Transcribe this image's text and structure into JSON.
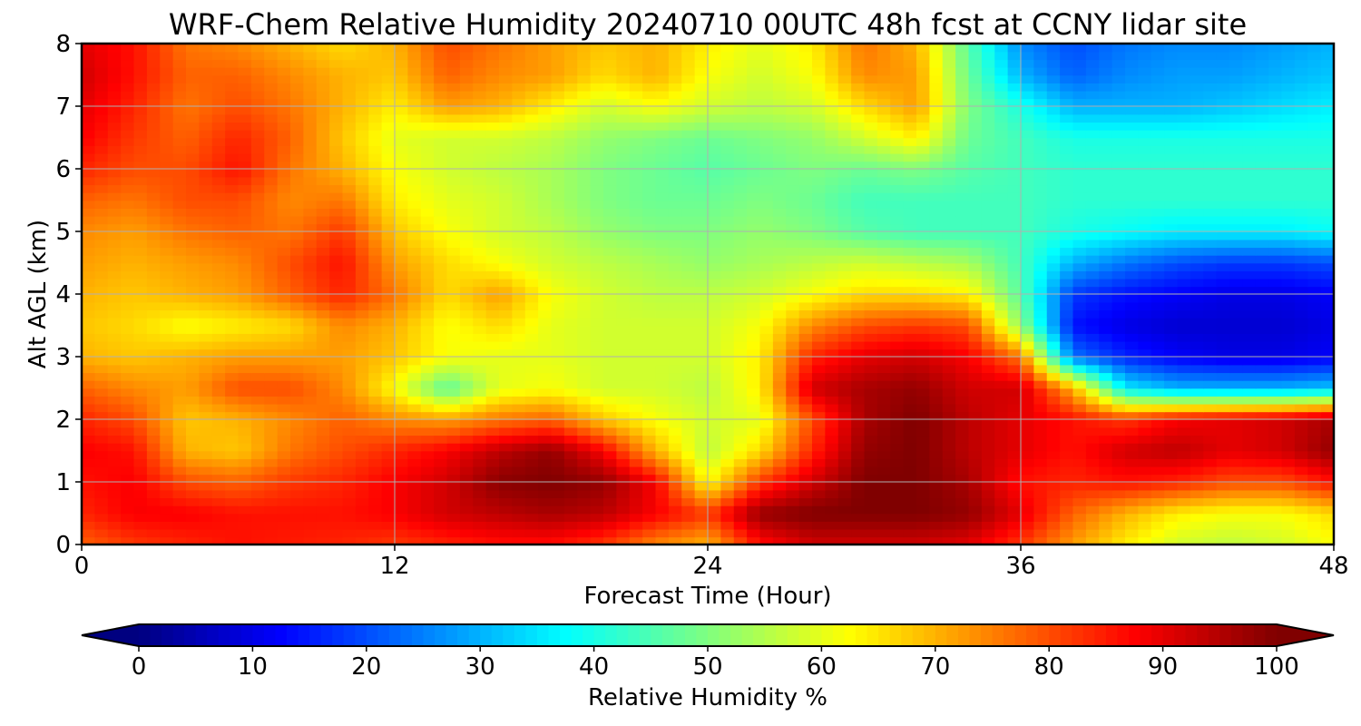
{
  "chart_data": {
    "type": "heatmap",
    "title": "WRF-Chem Relative Humidity 20240710 00UTC 48h fcst at CCNY lidar site",
    "xlabel": "Forecast Time (Hour)",
    "ylabel": "Alt AGL (km)",
    "xlim": [
      0,
      48
    ],
    "ylim": [
      0,
      8
    ],
    "x_ticks": [
      0,
      12,
      24,
      36,
      48
    ],
    "y_ticks": [
      0,
      1,
      2,
      3,
      4,
      5,
      6,
      7,
      8
    ],
    "grid": true,
    "colorbar": {
      "label": "Relative Humidity %",
      "range": [
        0,
        100
      ],
      "ticks": [
        0,
        10,
        20,
        30,
        40,
        50,
        60,
        70,
        80,
        90,
        100
      ],
      "extend": "both",
      "colormap": "jet",
      "placement": "bottom"
    },
    "x": [
      0,
      2,
      4,
      6,
      8,
      10,
      12,
      14,
      16,
      18,
      20,
      22,
      24,
      26,
      28,
      30,
      32,
      34,
      36,
      38,
      40,
      42,
      44,
      46,
      48
    ],
    "y": [
      0,
      0.5,
      1,
      1.5,
      2,
      2.5,
      3,
      3.5,
      4,
      4.5,
      5,
      5.5,
      6,
      6.5,
      7,
      7.5,
      8
    ],
    "z": [
      [
        78,
        82,
        84,
        86,
        85,
        84,
        82,
        84,
        86,
        86,
        82,
        74,
        70,
        86,
        92,
        92,
        92,
        90,
        82,
        72,
        64,
        58,
        56,
        58,
        62
      ],
      [
        84,
        88,
        88,
        86,
        86,
        86,
        88,
        92,
        94,
        96,
        94,
        88,
        82,
        98,
        100,
        100,
        100,
        98,
        90,
        78,
        70,
        64,
        62,
        62,
        66
      ],
      [
        86,
        88,
        80,
        78,
        82,
        84,
        88,
        92,
        99,
        100,
        98,
        88,
        62,
        82,
        92,
        100,
        100,
        96,
        86,
        84,
        86,
        84,
        80,
        80,
        86
      ],
      [
        88,
        86,
        70,
        68,
        76,
        80,
        84,
        88,
        94,
        98,
        88,
        70,
        56,
        66,
        84,
        98,
        100,
        94,
        90,
        86,
        92,
        94,
        90,
        92,
        98
      ],
      [
        84,
        80,
        68,
        70,
        74,
        78,
        74,
        72,
        76,
        78,
        68,
        62,
        58,
        60,
        80,
        96,
        100,
        94,
        90,
        86,
        82,
        88,
        90,
        92,
        96
      ],
      [
        78,
        74,
        72,
        80,
        80,
        74,
        62,
        46,
        60,
        62,
        58,
        58,
        56,
        64,
        92,
        96,
        98,
        92,
        92,
        70,
        36,
        30,
        30,
        30,
        32
      ],
      [
        70,
        68,
        70,
        72,
        72,
        72,
        68,
        62,
        60,
        60,
        58,
        58,
        58,
        64,
        84,
        90,
        92,
        88,
        76,
        24,
        16,
        12,
        10,
        10,
        12
      ],
      [
        68,
        66,
        62,
        64,
        66,
        74,
        70,
        62,
        66,
        60,
        58,
        58,
        58,
        62,
        74,
        80,
        82,
        80,
        52,
        14,
        10,
        8,
        8,
        8,
        10
      ],
      [
        70,
        68,
        70,
        72,
        78,
        84,
        76,
        66,
        72,
        62,
        58,
        56,
        56,
        58,
        62,
        66,
        66,
        64,
        46,
        18,
        14,
        12,
        10,
        10,
        12
      ],
      [
        72,
        70,
        72,
        74,
        80,
        86,
        72,
        66,
        62,
        58,
        56,
        54,
        52,
        54,
        56,
        58,
        56,
        54,
        44,
        30,
        24,
        20,
        18,
        18,
        20
      ],
      [
        74,
        72,
        76,
        78,
        76,
        82,
        68,
        62,
        58,
        56,
        52,
        50,
        50,
        52,
        50,
        46,
        44,
        44,
        44,
        40,
        38,
        36,
        36,
        36,
        38
      ],
      [
        78,
        76,
        80,
        80,
        74,
        76,
        64,
        60,
        58,
        54,
        50,
        48,
        48,
        50,
        48,
        44,
        44,
        44,
        44,
        42,
        42,
        42,
        42,
        42,
        42
      ],
      [
        84,
        80,
        80,
        86,
        76,
        70,
        62,
        58,
        56,
        54,
        50,
        48,
        46,
        48,
        50,
        48,
        50,
        46,
        44,
        42,
        42,
        42,
        42,
        42,
        42
      ],
      [
        88,
        82,
        78,
        84,
        78,
        68,
        60,
        58,
        58,
        56,
        52,
        50,
        48,
        50,
        52,
        58,
        64,
        48,
        44,
        40,
        40,
        40,
        40,
        40,
        40
      ],
      [
        90,
        84,
        76,
        80,
        76,
        70,
        64,
        72,
        70,
        64,
        58,
        62,
        58,
        56,
        58,
        66,
        72,
        50,
        40,
        30,
        30,
        30,
        32,
        34,
        36
      ],
      [
        92,
        86,
        78,
        78,
        74,
        70,
        68,
        78,
        74,
        72,
        66,
        70,
        62,
        58,
        62,
        74,
        72,
        48,
        30,
        22,
        26,
        28,
        28,
        30,
        32
      ],
      [
        90,
        86,
        76,
        74,
        70,
        66,
        70,
        80,
        76,
        72,
        68,
        70,
        64,
        60,
        64,
        76,
        70,
        46,
        26,
        20,
        24,
        26,
        26,
        28,
        30
      ]
    ]
  }
}
